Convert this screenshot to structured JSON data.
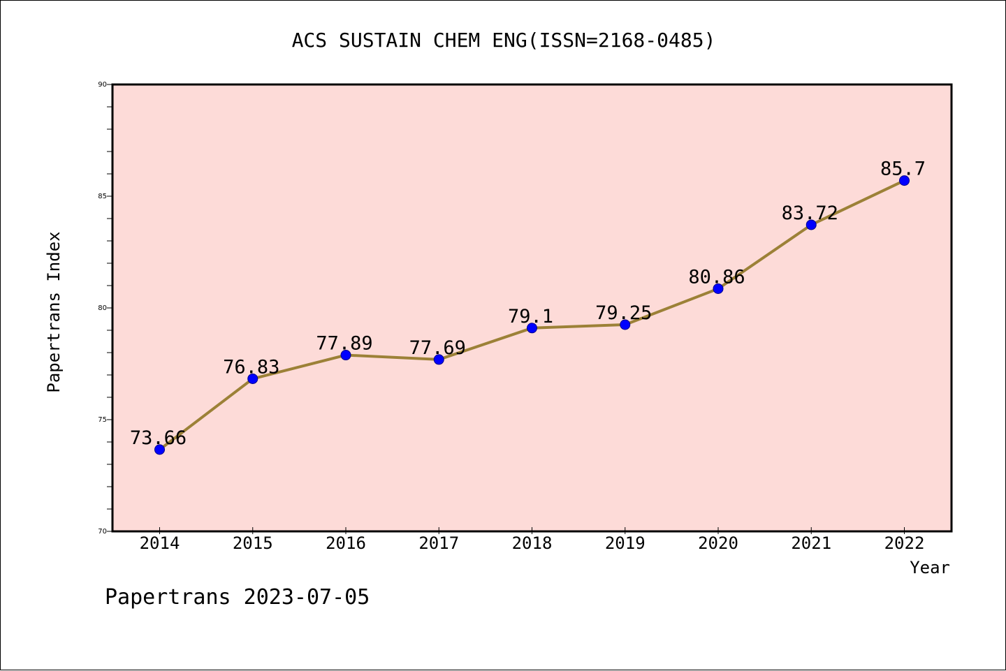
{
  "chart_data": {
    "type": "line",
    "title": "ACS SUSTAIN CHEM ENG(ISSN=2168-0485)",
    "xlabel": "Year",
    "ylabel": "Papertrans Index",
    "categories": [
      "2014",
      "2015",
      "2016",
      "2017",
      "2018",
      "2019",
      "2020",
      "2021",
      "2022"
    ],
    "values": [
      73.66,
      76.83,
      77.89,
      77.69,
      79.1,
      79.25,
      80.86,
      83.72,
      85.7
    ],
    "data_labels": [
      "73.66",
      "76.83",
      "77.89",
      "77.69",
      "79.1",
      "79.25",
      "80.86",
      "83.72",
      "85.7"
    ],
    "ylim": [
      70,
      90
    ],
    "yticks": [
      "70",
      "75",
      "80",
      "85",
      "90"
    ],
    "grid": false,
    "footer": "Papertrans 2023-07-05",
    "colors": {
      "plot_background": "#fddbd8",
      "line": "#9c8137",
      "marker": "#0000ff"
    }
  }
}
